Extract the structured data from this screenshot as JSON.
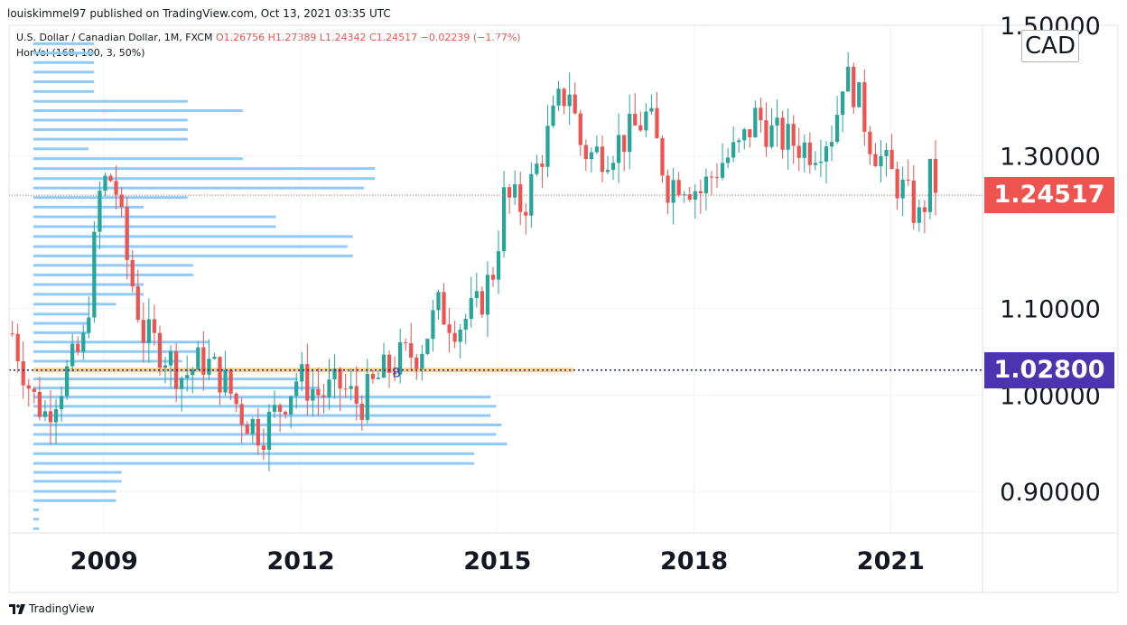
{
  "header": {
    "publisher": "louiskimmel97 published on TradingView.com, Oct 13, 2021 03:35 UTC"
  },
  "legend": {
    "symbol": "U.S. Dollar / Canadian Dollar, 1M, FXCM",
    "ohlc": "O1.26756  H1.27389  L1.24342  C1.24517  −0.02239 (−1.77%)",
    "indicator": "HorVol (168, 100, 3, 50%)"
  },
  "currency_badge": "CAD",
  "last_price_label": "1.24517",
  "b_level_label": "1.02800",
  "b_marker": "B",
  "footer": {
    "brand": "TradingView"
  },
  "colors": {
    "up": "#26a69a",
    "down": "#ef5350",
    "volume_profile": "#90caf9",
    "b_line": "#1a237e",
    "b_tag": "#4c33b0",
    "poc": "#ffcc80"
  },
  "chart_data": {
    "type": "candlestick",
    "y_scale": "log",
    "ylim": [
      0.86,
      1.5
    ],
    "xlim": [
      2007.55,
      2022.4
    ],
    "x_ticks": [
      {
        "value": 2009,
        "label": "2009"
      },
      {
        "value": 2012,
        "label": "2012"
      },
      {
        "value": 2015,
        "label": "2015"
      },
      {
        "value": 2018,
        "label": "2018"
      },
      {
        "value": 2021,
        "label": "2021"
      }
    ],
    "y_ticks": [
      {
        "value": 1.5,
        "label": "1.50000"
      },
      {
        "value": 1.3,
        "label": "1.30000"
      },
      {
        "value": 1.1,
        "label": "1.10000"
      },
      {
        "value": 1.0,
        "label": "1.00000"
      },
      {
        "value": 0.9,
        "label": "0.90000"
      }
    ],
    "last_price": 1.24517,
    "b_level": 1.028,
    "b_level_x": 2012.5,
    "candle_anchors": [
      [
        2007.6,
        1.07
      ],
      [
        2007.9,
        1.0
      ],
      [
        2008.1,
        0.98
      ],
      [
        2008.4,
        1.02
      ],
      [
        2008.7,
        1.06
      ],
      [
        2008.95,
        1.26
      ],
      [
        2009.15,
        1.27
      ],
      [
        2009.35,
        1.16
      ],
      [
        2009.6,
        1.07
      ],
      [
        2009.9,
        1.05
      ],
      [
        2010.2,
        1.02
      ],
      [
        2010.5,
        1.04
      ],
      [
        2010.8,
        1.02
      ],
      [
        2011.1,
        0.98
      ],
      [
        2011.4,
        0.96
      ],
      [
        2011.7,
        0.99
      ],
      [
        2011.95,
        1.02
      ],
      [
        2012.3,
        1.0
      ],
      [
        2012.6,
        1.01
      ],
      [
        2012.9,
        0.99
      ],
      [
        2013.2,
        1.02
      ],
      [
        2013.5,
        1.04
      ],
      [
        2013.8,
        1.05
      ],
      [
        2014.1,
        1.1
      ],
      [
        2014.4,
        1.08
      ],
      [
        2014.7,
        1.1
      ],
      [
        2014.95,
        1.15
      ],
      [
        2015.1,
        1.24
      ],
      [
        2015.4,
        1.23
      ],
      [
        2015.7,
        1.31
      ],
      [
        2015.95,
        1.38
      ],
      [
        2016.1,
        1.4
      ],
      [
        2016.25,
        1.32
      ],
      [
        2016.4,
        1.3
      ],
      [
        2016.7,
        1.31
      ],
      [
        2017.0,
        1.33
      ],
      [
        2017.3,
        1.36
      ],
      [
        2017.6,
        1.26
      ],
      [
        2017.8,
        1.27
      ],
      [
        2018.1,
        1.25
      ],
      [
        2018.4,
        1.29
      ],
      [
        2018.7,
        1.31
      ],
      [
        2018.95,
        1.36
      ],
      [
        2019.2,
        1.33
      ],
      [
        2019.5,
        1.32
      ],
      [
        2019.8,
        1.31
      ],
      [
        2020.15,
        1.34
      ],
      [
        2020.25,
        1.42
      ],
      [
        2020.45,
        1.4
      ],
      [
        2020.7,
        1.32
      ],
      [
        2020.95,
        1.28
      ],
      [
        2021.2,
        1.25
      ],
      [
        2021.45,
        1.21
      ],
      [
        2021.6,
        1.27
      ],
      [
        2021.75,
        1.25
      ]
    ],
    "volume_profile": [
      [
        1.47,
        0.11
      ],
      [
        1.455,
        0.11
      ],
      [
        1.44,
        0.11
      ],
      [
        1.425,
        0.11
      ],
      [
        1.41,
        0.11
      ],
      [
        1.395,
        0.11
      ],
      [
        1.38,
        0.28
      ],
      [
        1.366,
        0.38
      ],
      [
        1.352,
        0.28
      ],
      [
        1.338,
        0.28
      ],
      [
        1.324,
        0.28
      ],
      [
        1.31,
        0.1
      ],
      [
        1.296,
        0.38
      ],
      [
        1.282,
        0.62
      ],
      [
        1.268,
        0.62
      ],
      [
        1.255,
        0.6
      ],
      [
        1.242,
        0.28
      ],
      [
        1.229,
        0.2
      ],
      [
        1.216,
        0.44
      ],
      [
        1.203,
        0.44
      ],
      [
        1.19,
        0.58
      ],
      [
        1.177,
        0.57
      ],
      [
        1.165,
        0.58
      ],
      [
        1.153,
        0.29
      ],
      [
        1.141,
        0.29
      ],
      [
        1.129,
        0.2
      ],
      [
        1.117,
        0.2
      ],
      [
        1.105,
        0.15
      ],
      [
        1.093,
        0.1
      ],
      [
        1.082,
        0.1
      ],
      [
        1.071,
        0.1
      ],
      [
        1.06,
        0.32
      ],
      [
        1.049,
        0.3
      ],
      [
        1.038,
        0.27
      ],
      [
        1.028,
        0.34
      ],
      [
        1.018,
        0.48
      ],
      [
        1.008,
        0.52
      ],
      [
        0.998,
        0.83
      ],
      [
        0.988,
        0.84
      ],
      [
        0.978,
        0.83
      ],
      [
        0.968,
        0.85
      ],
      [
        0.958,
        0.84
      ],
      [
        0.948,
        0.86
      ],
      [
        0.938,
        0.8
      ],
      [
        0.928,
        0.8
      ],
      [
        0.919,
        0.16
      ],
      [
        0.91,
        0.16
      ],
      [
        0.9,
        0.15
      ],
      [
        0.891,
        0.15
      ],
      [
        0.882,
        0.01
      ],
      [
        0.873,
        0.01
      ],
      [
        0.864,
        0.01
      ]
    ]
  }
}
